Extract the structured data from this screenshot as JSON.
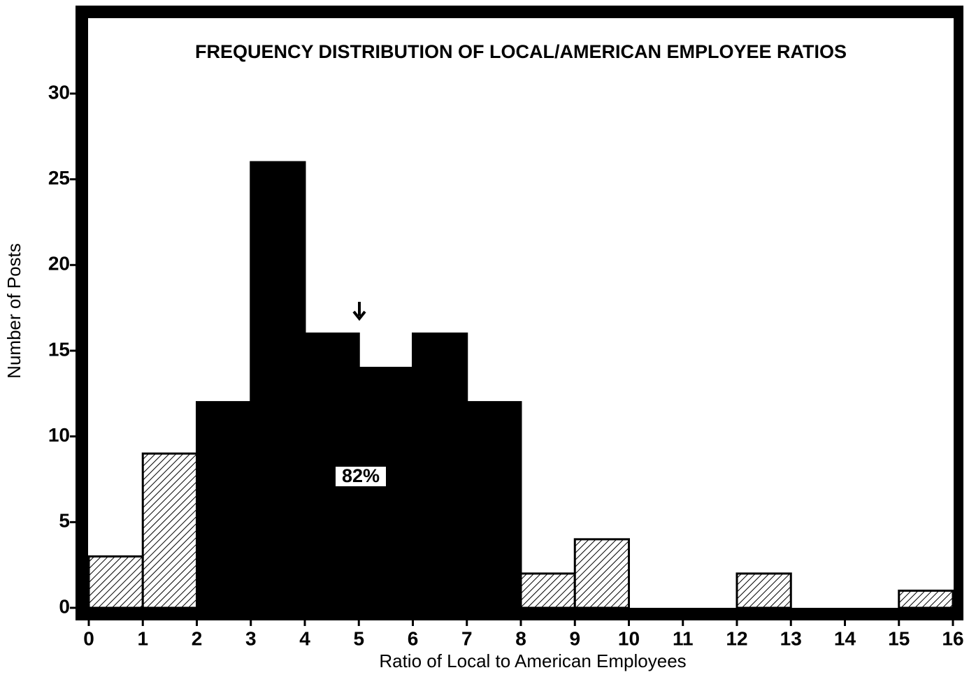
{
  "chart_data": {
    "type": "histogram",
    "title": "FREQUENCY DISTRIBUTION OF LOCAL/AMERICAN EMPLOYEE RATIOS",
    "x_label": "Ratio of Local to American Employees",
    "y_label": "Number of Posts",
    "bins": [
      0,
      1,
      2,
      3,
      4,
      5,
      6,
      7,
      8,
      9,
      10,
      11,
      12,
      13,
      14,
      15,
      16
    ],
    "values": [
      3,
      9,
      12,
      26,
      16,
      14,
      16,
      12,
      2,
      4,
      0,
      0,
      2,
      0,
      0,
      1
    ],
    "fills": [
      "hatched",
      "hatched",
      "solid",
      "solid",
      "solid",
      "solid",
      "solid",
      "solid",
      "hatched",
      "hatched",
      "hatched",
      "hatched",
      "hatched",
      "hatched",
      "hatched",
      "hatched"
    ],
    "color": "#000000",
    "annotation": "82%",
    "xlim": [
      0,
      16
    ],
    "xticks": [
      0,
      1,
      2,
      3,
      4,
      5,
      6,
      7,
      8,
      9,
      10,
      11,
      12,
      13,
      14,
      15,
      16
    ],
    "ylim": [
      0,
      34.4
    ],
    "yticks": [
      0,
      5,
      10,
      15,
      20,
      25,
      30
    ]
  }
}
